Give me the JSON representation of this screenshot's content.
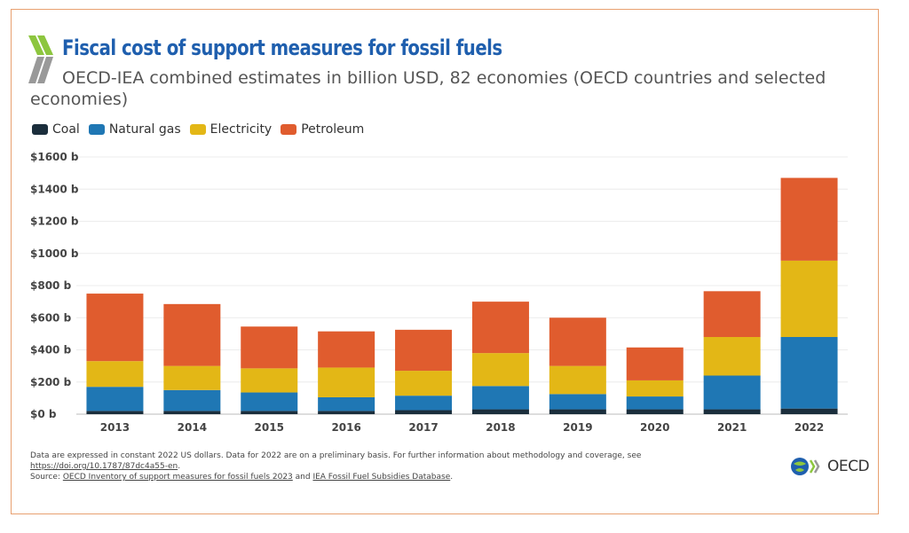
{
  "header": {
    "title": "Fiscal cost of support measures for fossil fuels",
    "subtitle": "OECD-IEA combined estimates in billion USD, 82 economies (OECD countries and selected economies)"
  },
  "notes": {
    "line1": "Data are expressed in constant 2022 US dollars. Data for 2022 are on a preliminary basis. For further information about methodology and coverage, see",
    "doi_link": "https://doi.org/10.1787/87dc4a55-en",
    "doi_suffix": ".",
    "source_prefix": "Source: ",
    "source_link1": "OECD Inventory of support measures for fossil fuels 2023",
    "source_and": " and ",
    "source_link2": "IEA Fossil Fuel Subsidies Database",
    "source_suffix": "."
  },
  "logo": {
    "text": "OECD"
  },
  "colors": {
    "Coal": "#1b2e3c",
    "Natural gas": "#1f77b4",
    "Electricity": "#e3b716",
    "Petroleum": "#e05c2e",
    "title": "#1f5fae"
  },
  "chart_data": {
    "type": "bar",
    "stacked": true,
    "categories": [
      "2013",
      "2014",
      "2015",
      "2016",
      "2017",
      "2018",
      "2019",
      "2020",
      "2021",
      "2022"
    ],
    "series": [
      {
        "name": "Coal",
        "values": [
          20,
          20,
          20,
          20,
          25,
          30,
          30,
          30,
          30,
          35
        ]
      },
      {
        "name": "Natural gas",
        "values": [
          150,
          130,
          115,
          85,
          90,
          145,
          95,
          80,
          210,
          445
        ]
      },
      {
        "name": "Electricity",
        "values": [
          160,
          150,
          150,
          185,
          155,
          205,
          175,
          100,
          240,
          475
        ]
      },
      {
        "name": "Petroleum",
        "values": [
          420,
          385,
          260,
          225,
          255,
          320,
          300,
          205,
          285,
          515
        ]
      }
    ],
    "ylim": [
      0,
      1600
    ],
    "yticks": [
      0,
      200,
      400,
      600,
      800,
      1000,
      1200,
      1400,
      1600
    ],
    "ytick_labels": [
      "$0 b",
      "$200 b",
      "$400 b",
      "$600 b",
      "$800 b",
      "$1000 b",
      "$1200 b",
      "$1400 b",
      "$1600 b"
    ],
    "grid": true,
    "legend_position": "top-left",
    "xlabel": "",
    "ylabel": ""
  }
}
